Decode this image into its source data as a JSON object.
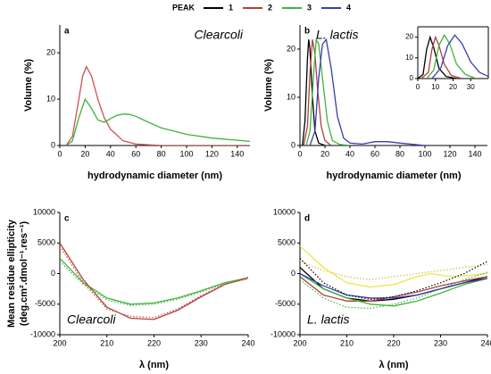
{
  "legend": {
    "title": "PEAK",
    "entries": [
      {
        "label": "1",
        "color": "#000000"
      },
      {
        "label": "2",
        "color": "#b0413e"
      },
      {
        "label": "3",
        "color": "#3db53d"
      },
      {
        "label": "4",
        "color": "#3b3bb0"
      }
    ]
  },
  "chart_data": [
    {
      "type": "line",
      "panel_label": "a",
      "annotation": "Clearcoli",
      "y_label": [
        "Volume (%)"
      ],
      "x_label": "hydrodynamic diameter (nm)",
      "xlim": [
        0,
        150
      ],
      "xticks": [
        0,
        20,
        40,
        60,
        80,
        100,
        120,
        140
      ],
      "ylim": [
        0,
        26
      ],
      "yticks": [
        0,
        10,
        20
      ],
      "series": [
        {
          "color": "#d05050",
          "style": "solid",
          "x": [
            5,
            10,
            15,
            18,
            21,
            25,
            30,
            35,
            40,
            50,
            60,
            80,
            150
          ],
          "values": [
            0,
            2,
            10,
            15,
            17,
            15,
            10,
            6,
            3.5,
            1,
            0.3,
            0,
            0
          ]
        },
        {
          "color": "#3db53d",
          "style": "solid",
          "x": [
            5,
            10,
            15,
            20,
            25,
            30,
            35,
            40,
            45,
            50,
            55,
            60,
            70,
            80,
            100,
            120,
            150
          ],
          "values": [
            0,
            1,
            6,
            10,
            8,
            5.5,
            5,
            5.8,
            6.5,
            6.8,
            6.7,
            6.3,
            5,
            3.8,
            2.4,
            1.6,
            0.9
          ]
        }
      ]
    },
    {
      "type": "line",
      "panel_label": "b",
      "annotation": "L. lactis",
      "y_label": [
        "Volume (%)"
      ],
      "x_label": "hydrodynamic diameter (nm)",
      "xlim": [
        0,
        150
      ],
      "xticks": [
        0,
        20,
        40,
        60,
        80,
        100,
        120,
        140
      ],
      "ylim": [
        0,
        25
      ],
      "yticks": [
        0,
        10,
        20
      ],
      "series": [
        {
          "color": "#000000",
          "style": "solid",
          "x": [
            2,
            4,
            6,
            7,
            8,
            10,
            12,
            15,
            20
          ],
          "values": [
            0,
            5,
            18,
            22,
            20,
            10,
            3,
            0.5,
            0
          ]
        },
        {
          "color": "#b0413e",
          "style": "solid",
          "x": [
            3,
            6,
            8,
            10,
            12,
            14,
            17,
            20,
            25
          ],
          "values": [
            0,
            4,
            15,
            22,
            19,
            12,
            4,
            1,
            0
          ]
        },
        {
          "color": "#3db53d",
          "style": "solid",
          "x": [
            5,
            8,
            11,
            13,
            15,
            18,
            22,
            26,
            32,
            40
          ],
          "values": [
            0,
            3,
            15,
            22,
            21,
            14,
            5,
            1,
            0.2,
            0
          ]
        },
        {
          "color": "#3b3bb0",
          "style": "solid",
          "x": [
            8,
            12,
            15,
            18,
            21,
            25,
            30,
            35,
            40,
            50,
            60,
            70,
            80,
            100
          ],
          "values": [
            0,
            3,
            14,
            21,
            22,
            16,
            6,
            1.5,
            0.5,
            0.3,
            0.8,
            0.8,
            0.5,
            0
          ]
        }
      ]
    },
    {
      "type": "line",
      "xlim": [
        0,
        40
      ],
      "xticks": [
        0,
        10,
        20,
        30
      ],
      "ylim": [
        0,
        25
      ],
      "yticks": [
        0,
        10,
        20
      ],
      "series": [
        {
          "color": "#000000",
          "style": "solid",
          "x": [
            0,
            3,
            5,
            7,
            9,
            12,
            16,
            22
          ],
          "values": [
            0,
            2,
            14,
            20,
            15,
            5,
            1,
            0
          ]
        },
        {
          "color": "#b0413e",
          "style": "solid",
          "x": [
            2,
            6,
            8,
            10,
            12,
            15,
            19,
            25
          ],
          "values": [
            0,
            3,
            14,
            20,
            16,
            7,
            1.5,
            0
          ]
        },
        {
          "color": "#3db53d",
          "style": "solid",
          "x": [
            5,
            9,
            12,
            15,
            18,
            22,
            27,
            33
          ],
          "values": [
            0,
            4,
            16,
            21,
            17,
            7,
            2,
            0
          ]
        },
        {
          "color": "#3b3bb0",
          "style": "solid",
          "x": [
            8,
            13,
            17,
            21,
            25,
            30,
            35,
            40
          ],
          "values": [
            0,
            5,
            16,
            21,
            17,
            8,
            3,
            1
          ]
        }
      ]
    },
    {
      "type": "line",
      "panel_label": "c",
      "annotation": "Clearcoli",
      "y_label": [
        "Mean residue ellipticity",
        "(deg.cm².dmol⁻¹.res⁻¹)"
      ],
      "x_label": "λ (nm)",
      "xlim": [
        200,
        240
      ],
      "xticks": [
        200,
        210,
        220,
        230,
        240
      ],
      "ylim": [
        -10000,
        10000
      ],
      "yticks": [
        -10000,
        -5000,
        0,
        5000,
        10000
      ],
      "series": [
        {
          "color": "#3db53d",
          "style": "solid",
          "x": [
            200,
            205,
            210,
            215,
            220,
            225,
            230,
            235,
            240
          ],
          "values": [
            2500,
            -1500,
            -4000,
            -5000,
            -4800,
            -4000,
            -2800,
            -1500,
            -700
          ]
        },
        {
          "color": "#b0413e",
          "style": "solid",
          "x": [
            200,
            205,
            210,
            215,
            220,
            225,
            230,
            235,
            240
          ],
          "values": [
            5000,
            -1000,
            -5500,
            -7300,
            -7500,
            -6000,
            -3800,
            -1800,
            -700
          ]
        },
        {
          "color": "#3db53d",
          "style": "dotted",
          "x": [
            200,
            205,
            210,
            215,
            220,
            225,
            230,
            235,
            240
          ],
          "values": [
            2000,
            -1800,
            -4300,
            -5200,
            -5000,
            -4200,
            -3000,
            -1700,
            -900
          ]
        },
        {
          "color": "#d05050",
          "style": "dotted",
          "x": [
            200,
            205,
            210,
            215,
            220,
            225,
            230,
            235,
            240
          ],
          "values": [
            4500,
            -1500,
            -5800,
            -7000,
            -7200,
            -5800,
            -3600,
            -1700,
            -600
          ]
        }
      ]
    },
    {
      "type": "line",
      "panel_label": "d",
      "annotation": "L. lactis",
      "x_label": "λ (nm)",
      "xlim": [
        200,
        240
      ],
      "xticks": [
        200,
        210,
        220,
        230,
        240
      ],
      "ylim": [
        -10000,
        10000
      ],
      "yticks": [
        -10000,
        -5000,
        0,
        5000,
        10000
      ],
      "series": [
        {
          "color": "#e8e84a",
          "style": "solid",
          "x": [
            200,
            205,
            210,
            215,
            220,
            225,
            228,
            232,
            236,
            240
          ],
          "values": [
            4500,
            1000,
            -1500,
            -2200,
            -1800,
            -500,
            0,
            -500,
            -300,
            0
          ]
        },
        {
          "color": "#000000",
          "style": "solid",
          "x": [
            200,
            205,
            210,
            215,
            220,
            225,
            230,
            235,
            240
          ],
          "values": [
            1000,
            -2500,
            -4000,
            -4500,
            -4200,
            -3500,
            -2500,
            -1500,
            -500
          ]
        },
        {
          "color": "#b0413e",
          "style": "solid",
          "x": [
            200,
            205,
            210,
            215,
            220,
            225,
            230,
            235,
            240
          ],
          "values": [
            -500,
            -3500,
            -4500,
            -4500,
            -3800,
            -3000,
            -2000,
            -1200,
            -500
          ]
        },
        {
          "color": "#3db53d",
          "style": "solid",
          "x": [
            200,
            205,
            210,
            215,
            220,
            225,
            230,
            235,
            240
          ],
          "values": [
            0,
            -2500,
            -4000,
            -5000,
            -5300,
            -4500,
            -3200,
            -1800,
            -800
          ]
        },
        {
          "color": "#3b3bb0",
          "style": "solid",
          "x": [
            200,
            205,
            210,
            215,
            220,
            225,
            230,
            235,
            240
          ],
          "values": [
            0,
            -2000,
            -3500,
            -4000,
            -4000,
            -3500,
            -2500,
            -1500,
            -800
          ]
        },
        {
          "color": "#c8c840",
          "style": "dotted",
          "x": [
            200,
            205,
            210,
            215,
            220,
            225,
            230,
            235,
            240
          ],
          "values": [
            2000,
            500,
            -500,
            -1000,
            -500,
            0,
            500,
            1000,
            1500
          ]
        },
        {
          "color": "#000000",
          "style": "dotted",
          "x": [
            200,
            205,
            210,
            215,
            220,
            225,
            230,
            235,
            240
          ],
          "values": [
            2500,
            -1500,
            -3500,
            -4200,
            -3800,
            -2800,
            -1500,
            0,
            2000
          ]
        },
        {
          "color": "#3db53d",
          "style": "dotted",
          "x": [
            200,
            205,
            210,
            215,
            220,
            225,
            230,
            235,
            240
          ],
          "values": [
            -1000,
            -4000,
            -5500,
            -5700,
            -5000,
            -4000,
            -2500,
            -1000,
            200
          ]
        }
      ]
    }
  ]
}
